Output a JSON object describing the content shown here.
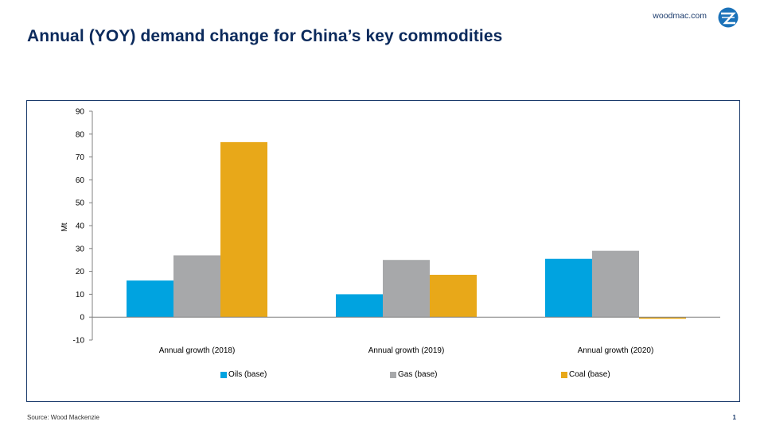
{
  "brand": {
    "site": "woodmac.com"
  },
  "title": "Annual (YOY) demand change for China’s key commodities",
  "footer": {
    "source": "Source: Wood Mackenzie",
    "page": "1"
  },
  "chart_data": {
    "type": "bar",
    "title": "",
    "xlabel": "",
    "ylabel": "Mt",
    "ylim": [
      -10,
      90
    ],
    "yticks": [
      90,
      80,
      70,
      60,
      50,
      40,
      30,
      20,
      10,
      0,
      -10
    ],
    "categories": [
      "Annual growth (2018)",
      "Annual growth (2019)",
      "Annual growth (2020)"
    ],
    "series": [
      {
        "name": "Oils (base)",
        "color": "#00a3e0",
        "values": [
          16,
          10,
          25.5
        ]
      },
      {
        "name": "Gas (base)",
        "color": "#a7a8aa",
        "values": [
          27,
          25,
          29
        ]
      },
      {
        "name": "Coal (base)",
        "color": "#e8a819",
        "values": [
          76.5,
          18.5,
          -0.7
        ]
      }
    ],
    "legend_position": "bottom",
    "grid": false
  }
}
